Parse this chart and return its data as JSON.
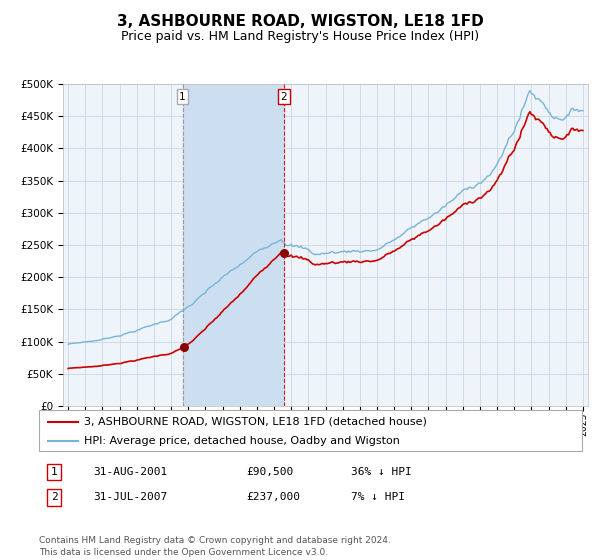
{
  "title": "3, ASHBOURNE ROAD, WIGSTON, LE18 1FD",
  "subtitle": "Price paid vs. HM Land Registry's House Price Index (HPI)",
  "hpi_color": "#7ab4d8",
  "price_color": "#cc0000",
  "marker_color": "#8b0000",
  "bg_color": "#ffffff",
  "grid_color": "#c8d8e8",
  "plot_bg": "#eef4f9",
  "shade_color": "#ccdff0",
  "ylim": [
    0,
    500000
  ],
  "yticks": [
    0,
    50000,
    100000,
    150000,
    200000,
    250000,
    300000,
    350000,
    400000,
    450000,
    500000
  ],
  "xstart_year": 1995,
  "xend_year": 2025,
  "transaction1_date": 2001.667,
  "transaction1_price": 90500,
  "transaction2_date": 2007.583,
  "transaction2_price": 237000,
  "legend1_label": "3, ASHBOURNE ROAD, WIGSTON, LE18 1FD (detached house)",
  "legend2_label": "HPI: Average price, detached house, Oadby and Wigston",
  "table_row1": [
    "1",
    "31-AUG-2001",
    "£90,500",
    "36% ↓ HPI"
  ],
  "table_row2": [
    "2",
    "31-JUL-2007",
    "£237,000",
    "7% ↓ HPI"
  ],
  "footnote": "Contains HM Land Registry data © Crown copyright and database right 2024.\nThis data is licensed under the Open Government Licence v3.0.",
  "title_fontsize": 11,
  "subtitle_fontsize": 9,
  "tick_fontsize": 7.5,
  "legend_fontsize": 8,
  "table_fontsize": 8,
  "footnote_fontsize": 6.5
}
